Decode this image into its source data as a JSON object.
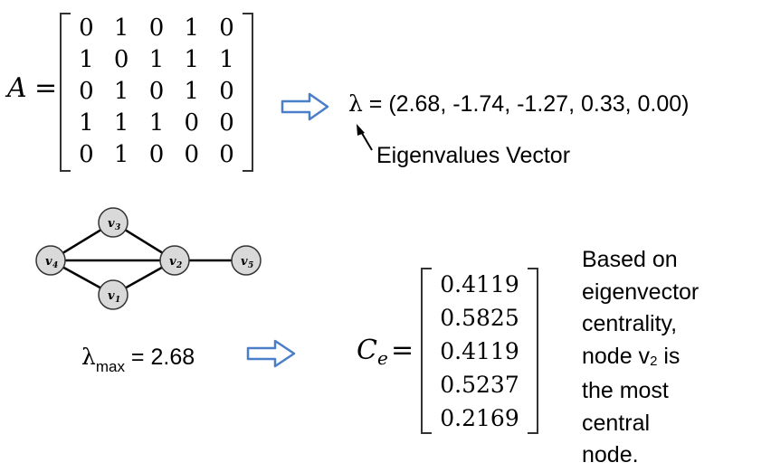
{
  "matrix_a": {
    "label": "A",
    "equals": "=",
    "rows": [
      [
        "0",
        "1",
        "0",
        "1",
        "0"
      ],
      [
        "1",
        "0",
        "1",
        "1",
        "1"
      ],
      [
        "0",
        "1",
        "0",
        "1",
        "0"
      ],
      [
        "1",
        "1",
        "1",
        "0",
        "0"
      ],
      [
        "0",
        "1",
        "0",
        "0",
        "0"
      ]
    ]
  },
  "eigenvalues": {
    "symbol": "λ",
    "text": " = (2.68,  -1.74, -1.27,  0.33, 0.00)",
    "caption": "Eigenvalues Vector"
  },
  "graph": {
    "nodes": [
      {
        "id": "v1",
        "label": "v",
        "sub": "1"
      },
      {
        "id": "v2",
        "label": "v",
        "sub": "2"
      },
      {
        "id": "v3",
        "label": "v",
        "sub": "3"
      },
      {
        "id": "v4",
        "label": "v",
        "sub": "4"
      },
      {
        "id": "v5",
        "label": "v",
        "sub": "5"
      }
    ],
    "edges": [
      [
        "v4",
        "v3"
      ],
      [
        "v4",
        "v2"
      ],
      [
        "v4",
        "v1"
      ],
      [
        "v3",
        "v2"
      ],
      [
        "v1",
        "v2"
      ],
      [
        "v2",
        "v5"
      ]
    ],
    "node_fill": "#d9d9d9"
  },
  "lambda_max": {
    "symbol": "λ",
    "sub": "max",
    "value": " = 2.68"
  },
  "centrality": {
    "label": "C",
    "sub": "e",
    "equals": "=",
    "values": [
      "0.4119",
      "0.5825",
      "0.4119",
      "0.5237",
      "0.2169"
    ]
  },
  "note": {
    "lines": [
      "Based on",
      "eigenvector",
      "centrality,",
      "node v",
      "is",
      "the most",
      "central",
      "node."
    ],
    "node_sub": "2"
  },
  "colors": {
    "arrow": "#4a7ec8",
    "text": "#000000"
  }
}
